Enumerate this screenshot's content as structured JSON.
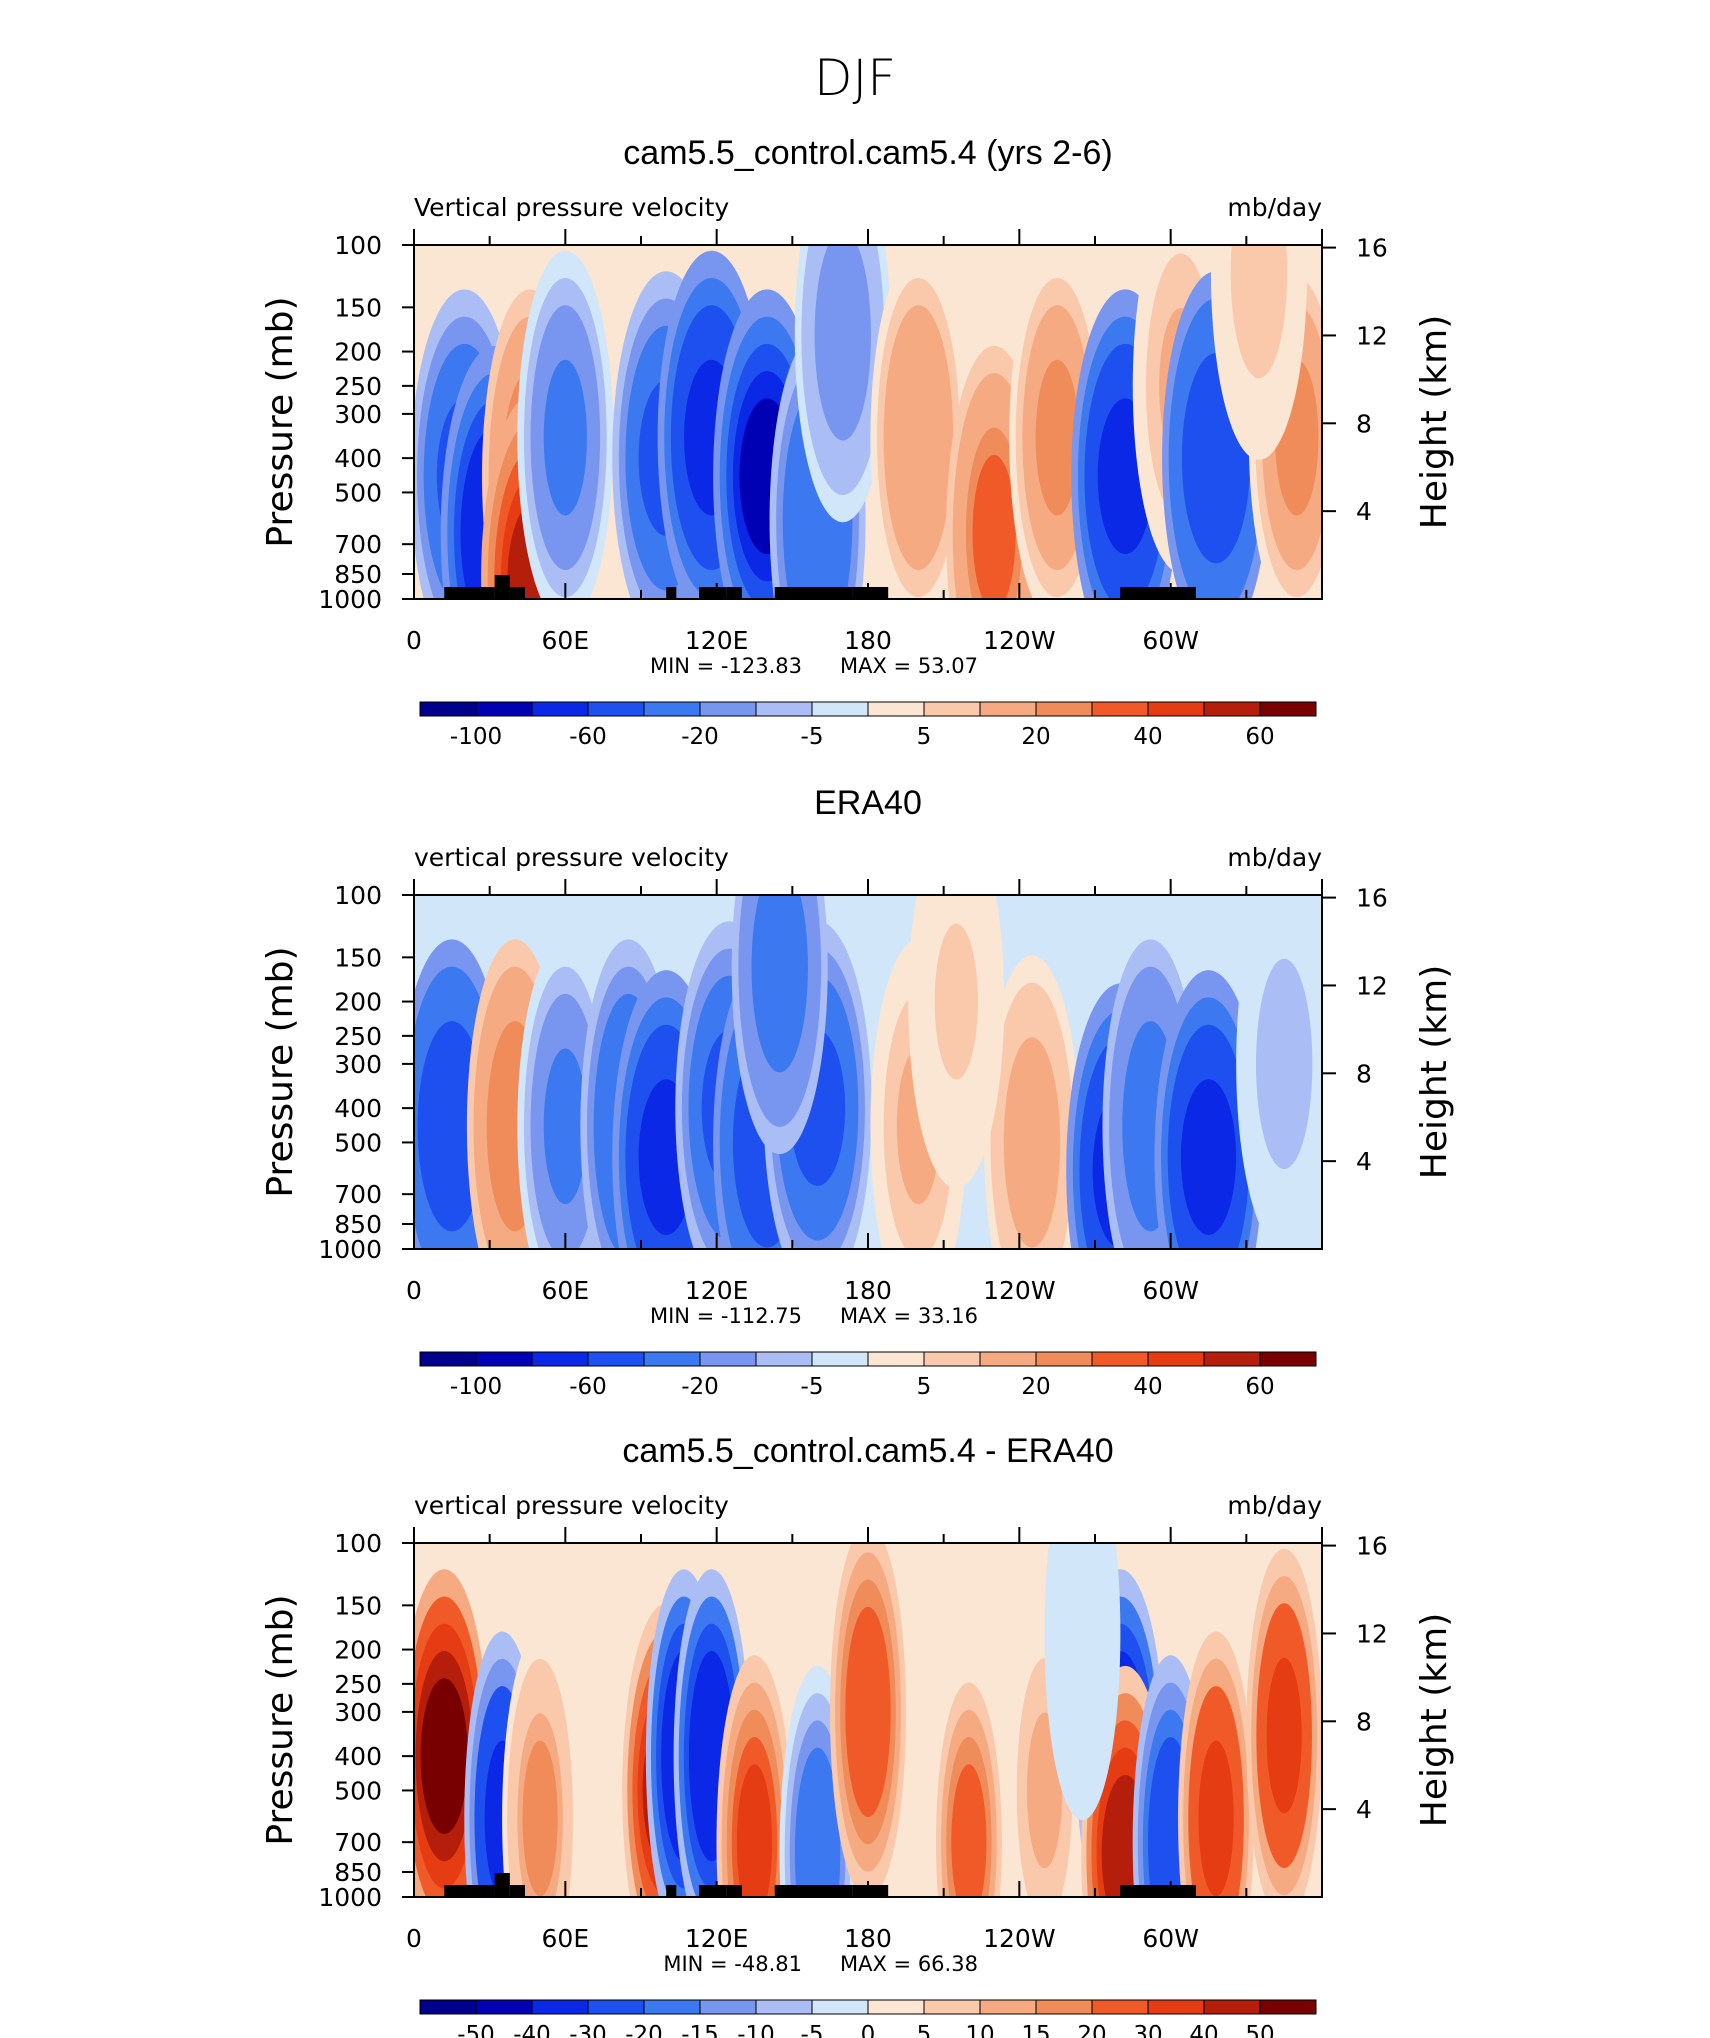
{
  "figure_title": "DJF",
  "colors": {
    "scale_ab": [
      "#00008c",
      "#0000b4",
      "#0a28e6",
      "#1e50f0",
      "#3c78f0",
      "#7896f0",
      "#aabef5",
      "#d2e6fa",
      "#fae6d2",
      "#fac8aa",
      "#f5aa82",
      "#f08c5a",
      "#f05a28",
      "#e63c14",
      "#b41e0a",
      "#780000"
    ],
    "scale_diff": [
      "#00008c",
      "#0000b4",
      "#0a28e6",
      "#1e50f0",
      "#3c78f0",
      "#7896f0",
      "#aabef5",
      "#d2e6fa",
      "#fae6d2",
      "#fac8aa",
      "#f5aa82",
      "#f08c5a",
      "#f05a28",
      "#e63c14",
      "#b41e0a",
      "#780000"
    ]
  },
  "chart_data": [
    {
      "type": "heatmap",
      "title": "cam5.5_control.cam5.4 (yrs 2-6)",
      "left_label": "Vertical pressure velocity",
      "right_label": "mb/day",
      "ylabel": "Pressure (mb)",
      "ylabel_right": "Height (km)",
      "x_ticks": [
        "0",
        "60E",
        "120E",
        "180",
        "120W",
        "60W"
      ],
      "x_tick_values": [
        0,
        60,
        120,
        180,
        240,
        300
      ],
      "xlim": [
        0,
        360
      ],
      "y_ticks": [
        "100",
        "150",
        "200",
        "250",
        "300",
        "400",
        "500",
        "700",
        "850",
        "1000"
      ],
      "y_tick_values": [
        100,
        150,
        200,
        250,
        300,
        400,
        500,
        700,
        850,
        1000
      ],
      "ylim": [
        1000,
        100
      ],
      "y_scale": "log",
      "right_ticks": [
        "16",
        "12",
        "8",
        "4"
      ],
      "right_tick_values": [
        16,
        12,
        8,
        4
      ],
      "min_label": "MIN = -123.83",
      "max_label": "MAX = 53.07",
      "min": -123.83,
      "max": 53.07,
      "colorbar_labels": [
        "-100",
        "-60",
        "-20",
        "-5",
        "5",
        "20",
        "40",
        "60"
      ],
      "colorbar_levels": [
        -120,
        -100,
        -80,
        -60,
        -40,
        -20,
        -10,
        -5,
        0,
        5,
        10,
        20,
        30,
        40,
        50,
        60
      ],
      "features": [
        {
          "lon": 20,
          "p": 450,
          "value": -45
        },
        {
          "lon": 32,
          "p": 650,
          "value": -80
        },
        {
          "lon": 46,
          "p": 450,
          "value": 25
        },
        {
          "lon": 48,
          "p": 880,
          "value": 50
        },
        {
          "lon": 60,
          "p": 350,
          "value": -25
        },
        {
          "lon": 100,
          "p": 400,
          "value": -50
        },
        {
          "lon": 118,
          "p": 350,
          "value": -70
        },
        {
          "lon": 140,
          "p": 450,
          "value": -90
        },
        {
          "lon": 160,
          "p": 600,
          "value": -35
        },
        {
          "lon": 170,
          "p": 180,
          "value": -15
        },
        {
          "lon": 200,
          "p": 350,
          "value": 18
        },
        {
          "lon": 230,
          "p": 650,
          "value": 30
        },
        {
          "lon": 255,
          "p": 350,
          "value": 20
        },
        {
          "lon": 282,
          "p": 450,
          "value": -70
        },
        {
          "lon": 304,
          "p": 250,
          "value": 10
        },
        {
          "lon": 318,
          "p": 400,
          "value": -60
        },
        {
          "lon": 350,
          "p": 350,
          "value": 22
        },
        {
          "lon": 335,
          "p": 120,
          "value": 8
        }
      ],
      "show_land": true
    },
    {
      "type": "heatmap",
      "title": "ERA40",
      "left_label": "vertical pressure velocity",
      "right_label": "mb/day",
      "ylabel": "Pressure (mb)",
      "ylabel_right": "Height (km)",
      "x_ticks": [
        "0",
        "60E",
        "120E",
        "180",
        "120W",
        "60W"
      ],
      "x_tick_values": [
        0,
        60,
        120,
        180,
        240,
        300
      ],
      "xlim": [
        0,
        360
      ],
      "y_ticks": [
        "100",
        "150",
        "200",
        "250",
        "300",
        "400",
        "500",
        "700",
        "850",
        "1000"
      ],
      "y_tick_values": [
        100,
        150,
        200,
        250,
        300,
        400,
        500,
        700,
        850,
        1000
      ],
      "ylim": [
        1000,
        100
      ],
      "y_scale": "log",
      "right_ticks": [
        "16",
        "12",
        "8",
        "4"
      ],
      "right_tick_values": [
        16,
        12,
        8,
        4
      ],
      "min_label": "MIN = -112.75",
      "max_label": "MAX = 33.16",
      "min": -112.75,
      "max": 33.16,
      "colorbar_labels": [
        "-100",
        "-60",
        "-20",
        "-5",
        "5",
        "20",
        "40",
        "60"
      ],
      "colorbar_levels": [
        -120,
        -100,
        -80,
        -60,
        -40,
        -20,
        -10,
        -5,
        0,
        5,
        10,
        20,
        30,
        40,
        50,
        60
      ],
      "features": [
        {
          "lon": 15,
          "p": 450,
          "value": -55
        },
        {
          "lon": 40,
          "p": 450,
          "value": 28
        },
        {
          "lon": 60,
          "p": 450,
          "value": -25
        },
        {
          "lon": 85,
          "p": 450,
          "value": -40
        },
        {
          "lon": 100,
          "p": 550,
          "value": -70
        },
        {
          "lon": 125,
          "p": 400,
          "value": -50
        },
        {
          "lon": 140,
          "p": 500,
          "value": -60
        },
        {
          "lon": 160,
          "p": 400,
          "value": -45
        },
        {
          "lon": 145,
          "p": 160,
          "value": -30
        },
        {
          "lon": 200,
          "p": 450,
          "value": 12
        },
        {
          "lon": 245,
          "p": 500,
          "value": 14
        },
        {
          "lon": 280,
          "p": 600,
          "value": -70
        },
        {
          "lon": 292,
          "p": 450,
          "value": -30
        },
        {
          "lon": 315,
          "p": 550,
          "value": -75
        },
        {
          "lon": 345,
          "p": 300,
          "value": -8
        },
        {
          "lon": 215,
          "p": 200,
          "value": 6
        }
      ],
      "show_land": false
    },
    {
      "type": "heatmap",
      "title": "cam5.5_control.cam5.4 - ERA40",
      "left_label": "vertical pressure velocity",
      "right_label": "mb/day",
      "ylabel": "Pressure (mb)",
      "ylabel_right": "Height (km)",
      "x_ticks": [
        "0",
        "60E",
        "120E",
        "180",
        "120W",
        "60W"
      ],
      "x_tick_values": [
        0,
        60,
        120,
        180,
        240,
        300
      ],
      "xlim": [
        0,
        360
      ],
      "y_ticks": [
        "100",
        "150",
        "200",
        "250",
        "300",
        "400",
        "500",
        "700",
        "850",
        "1000"
      ],
      "y_tick_values": [
        100,
        150,
        200,
        250,
        300,
        400,
        500,
        700,
        850,
        1000
      ],
      "ylim": [
        1000,
        100
      ],
      "y_scale": "log",
      "right_ticks": [
        "16",
        "12",
        "8",
        "4"
      ],
      "right_tick_values": [
        16,
        12,
        8,
        4
      ],
      "min_label": "MIN = -48.81",
      "max_label": "MAX = 66.38",
      "min": -48.81,
      "max": 66.38,
      "colorbar_labels": [
        "-50",
        "-40",
        "-30",
        "-20",
        "-15",
        "-10",
        "-5",
        "0",
        "5",
        "10",
        "15",
        "20",
        "30",
        "40",
        "50"
      ],
      "colorbar_levels": [
        -60,
        -50,
        -40,
        -30,
        -20,
        -15,
        -10,
        -5,
        0,
        5,
        10,
        15,
        20,
        30,
        40,
        50
      ],
      "features": [
        {
          "lon": 12,
          "p": 400,
          "value": 50
        },
        {
          "lon": 35,
          "p": 600,
          "value": -35
        },
        {
          "lon": 50,
          "p": 600,
          "value": 15
        },
        {
          "lon": 100,
          "p": 500,
          "value": 45
        },
        {
          "lon": 107,
          "p": 400,
          "value": -40
        },
        {
          "lon": 118,
          "p": 400,
          "value": -40
        },
        {
          "lon": 135,
          "p": 700,
          "value": 30
        },
        {
          "lon": 160,
          "p": 750,
          "value": -20
        },
        {
          "lon": 180,
          "p": 300,
          "value": 28
        },
        {
          "lon": 220,
          "p": 700,
          "value": 20
        },
        {
          "lon": 250,
          "p": 500,
          "value": 12
        },
        {
          "lon": 280,
          "p": 400,
          "value": -45
        },
        {
          "lon": 282,
          "p": 750,
          "value": 45
        },
        {
          "lon": 300,
          "p": 700,
          "value": -30
        },
        {
          "lon": 318,
          "p": 600,
          "value": 35
        },
        {
          "lon": 345,
          "p": 350,
          "value": 35
        },
        {
          "lon": 265,
          "p": 180,
          "value": -5
        }
      ],
      "show_land": true
    }
  ]
}
